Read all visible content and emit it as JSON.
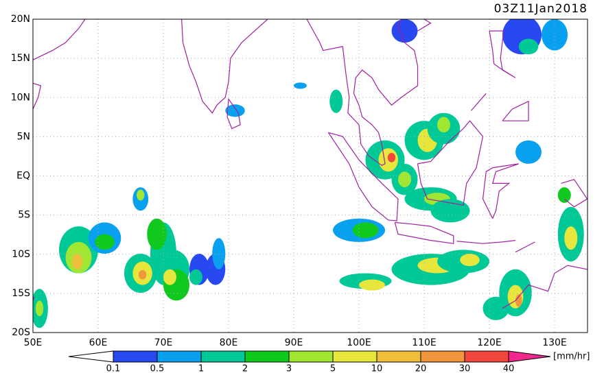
{
  "map": {
    "title": "03Z11Jan2018",
    "lat_labels": [
      "20N",
      "15N",
      "10N",
      "5N",
      "EQ",
      "5S",
      "10S",
      "15S",
      "20S"
    ],
    "lon_labels": [
      "50E",
      "60E",
      "70E",
      "80E",
      "90E",
      "100E",
      "110E",
      "120E",
      "130E"
    ],
    "colorbar": {
      "levels": [
        0.1,
        0.5,
        1,
        2,
        3,
        5,
        10,
        20,
        30,
        40
      ],
      "colors": [
        "#ffffff",
        "#2848f0",
        "#0aa0f0",
        "#00c896",
        "#10c81e",
        "#a0e632",
        "#e6e63c",
        "#eebe3c",
        "#f0963c",
        "#f0463c",
        "#f0288c"
      ],
      "unit": "[mm/hr]"
    }
  }
}
